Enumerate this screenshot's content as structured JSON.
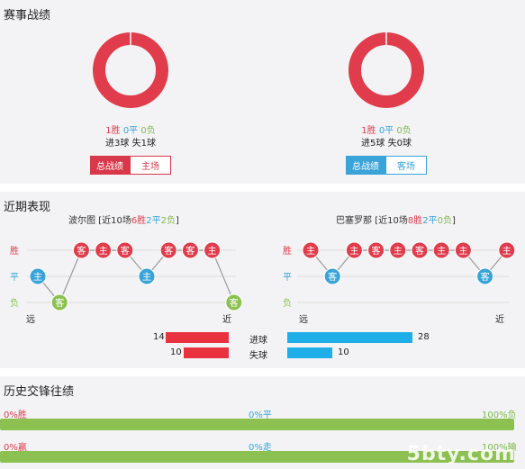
{
  "section1": {
    "title": "赛事战绩",
    "left": {
      "win": "1胜",
      "draw": "0平",
      "loss": "0负",
      "goals": "进3球 失1球",
      "btn_active": "总战绩",
      "btn_other": "主场",
      "win_fraction": 1.0
    },
    "right": {
      "win": "1胜",
      "draw": "0平",
      "loss": "0负",
      "goals": "进5球 失0球",
      "btn_active": "总战绩",
      "btn_other": "客场",
      "win_fraction": 1.0
    }
  },
  "section2": {
    "title": "近期表现",
    "left_team": {
      "name": "波尔图",
      "prefix": "[近10场",
      "w": "6胜",
      "d": "2平",
      "l": "2负",
      "suffix": "]"
    },
    "right_team": {
      "name": "巴塞罗那",
      "prefix": "[近10场",
      "w": "8胜",
      "d": "2平",
      "l": "0负",
      "suffix": "]"
    },
    "axis": {
      "win": "胜",
      "draw": "平",
      "loss": "负",
      "far": "远",
      "near": "近"
    },
    "left_form": [
      {
        "r": "draw",
        "v": "主"
      },
      {
        "r": "loss",
        "v": "客"
      },
      {
        "r": "win",
        "v": "客"
      },
      {
        "r": "win",
        "v": "主"
      },
      {
        "r": "win",
        "v": "客"
      },
      {
        "r": "draw",
        "v": "主"
      },
      {
        "r": "win",
        "v": "客"
      },
      {
        "r": "win",
        "v": "客"
      },
      {
        "r": "win",
        "v": "主"
      },
      {
        "r": "loss",
        "v": "客"
      }
    ],
    "right_form": [
      {
        "r": "win",
        "v": "主"
      },
      {
        "r": "draw",
        "v": "客"
      },
      {
        "r": "win",
        "v": "主"
      },
      {
        "r": "win",
        "v": "客"
      },
      {
        "r": "win",
        "v": "主"
      },
      {
        "r": "win",
        "v": "客"
      },
      {
        "r": "win",
        "v": "主"
      },
      {
        "r": "win",
        "v": "主"
      },
      {
        "r": "draw",
        "v": "客"
      },
      {
        "r": "win",
        "v": "主"
      }
    ],
    "goals_for": {
      "label": "进球",
      "left": 14,
      "right": 28
    },
    "goals_against": {
      "label": "失球",
      "left": 10,
      "right": 10
    }
  },
  "section3": {
    "title": "历史交锋往绩",
    "row1": {
      "left": "0%胜",
      "mid": "0%平",
      "right": "100%负"
    },
    "row2": {
      "left": "0%赢",
      "mid": "0%走",
      "right": "100%输"
    },
    "watermark": "5bty.com"
  },
  "colors": {
    "win": "#e03c4c",
    "draw": "#3aa3d8",
    "loss": "#8cc152",
    "bar_red": "#e8323f",
    "bar_blue": "#1faee8"
  }
}
